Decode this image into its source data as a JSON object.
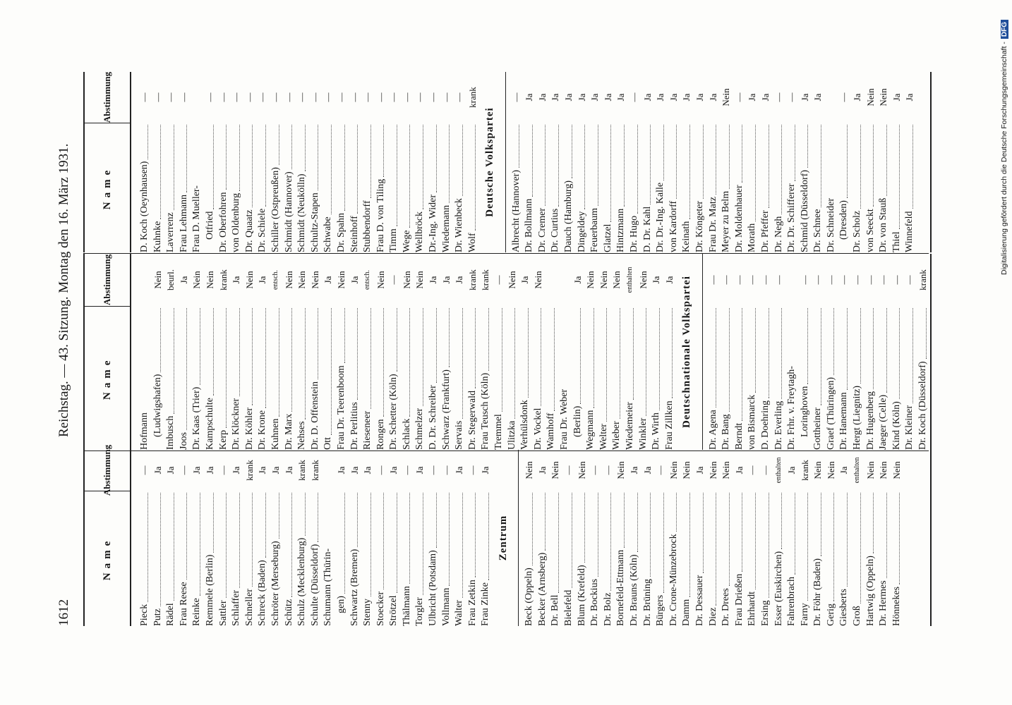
{
  "header": {
    "page_number": "1612",
    "running_title": "Reichstag. — 43. Sitzung. Montag den 16. März 1931."
  },
  "columns": [
    "Name",
    "Abstimmung"
  ],
  "tables": [
    {
      "sections": [
        {
          "rows": [
            {
              "name": "Pieck",
              "vote": "—"
            },
            {
              "name": "Putz",
              "vote": "Ja"
            },
            {
              "name": "Rädel",
              "vote": "Ja"
            },
            {
              "name": "Frau Reese",
              "vote": "—"
            },
            {
              "name": "Reinke",
              "vote": "Ja"
            },
            {
              "name": "Remmele (Berlin)",
              "vote": "Ja"
            },
            {
              "name": "Sattler",
              "vote": "—"
            },
            {
              "name": "Schlaffer",
              "vote": "Ja"
            },
            {
              "name": "Schneller",
              "vote": "krank"
            },
            {
              "name": "Schreck (Baden)",
              "vote": "Ja"
            },
            {
              "name": "Schröter (Merseburg)",
              "vote": "Ja"
            },
            {
              "name": "Schütz",
              "vote": "Ja"
            },
            {
              "name": "Schulz (Mecklenburg)",
              "vote": "krank"
            },
            {
              "name": "Schulte (Düsseldorf)",
              "vote": "krank"
            },
            {
              "name": "Schumann (Thürin-",
              "cont": "gen)",
              "vote": "Ja"
            },
            {
              "name": "Schwartz (Bremen)",
              "vote": "Ja"
            },
            {
              "name": "Stenny",
              "vote": "Ja"
            },
            {
              "name": "Stoecker",
              "vote": "—"
            },
            {
              "name": "Strötzel",
              "vote": "Ja"
            },
            {
              "name": "Thälmann",
              "vote": "—"
            },
            {
              "name": "Torgler",
              "vote": "Ja"
            },
            {
              "name": "Ulbricht (Potsdam)",
              "vote": "—"
            },
            {
              "name": "Vollmann",
              "vote": "—"
            },
            {
              "name": "Walter",
              "vote": "Ja"
            },
            {
              "name": "Frau Zetkin",
              "vote": "—"
            },
            {
              "name": "Frau Zinke",
              "vote": "Ja"
            }
          ]
        },
        {
          "heading": "Zentrum",
          "rows": [
            {
              "name": "Beck (Oppeln)",
              "vote": "Nein"
            },
            {
              "name": "Becker (Arnsberg)",
              "vote": "Ja"
            },
            {
              "name": "Dr. Bell",
              "vote": "Nein"
            },
            {
              "name": "Bielefeld",
              "vote": "—"
            },
            {
              "name": "Blum (Krefeld)",
              "vote": "Nein"
            },
            {
              "name": "Dr. Bockius",
              "vote": "—"
            },
            {
              "name": "Dr. Bolz",
              "vote": "—"
            },
            {
              "name": "Bornefeld-Ettmann",
              "vote": "Nein"
            },
            {
              "name": "Dr. Brauns (Köln)",
              "vote": "Ja"
            },
            {
              "name": "Dr. Brüning",
              "vote": "Ja"
            },
            {
              "name": "Bürgers",
              "vote": "—"
            },
            {
              "name": "Dr. Crone-Münzebrock",
              "vote": "Nein"
            },
            {
              "name": "Damm",
              "vote": "Nein"
            },
            {
              "name": "Dr. Dessauer",
              "vote": "Ja"
            },
            {
              "name": "Diez",
              "vote": "Nein"
            },
            {
              "name": "Dr. Drees",
              "vote": "Nein"
            },
            {
              "name": "Frau Drießen",
              "vote": "Ja"
            },
            {
              "name": "Ehrhardt",
              "vote": "—"
            },
            {
              "name": "Ersing",
              "vote": "—"
            },
            {
              "name": "Esser (Euskirchen)",
              "vote": "enthalten"
            },
            {
              "name": "Fahrenbrach",
              "vote": "Ja"
            },
            {
              "name": "Farny",
              "vote": "krank"
            },
            {
              "name": "Dr. Föhr (Baden)",
              "vote": "Nein"
            },
            {
              "name": "Gerig",
              "vote": "Nein"
            },
            {
              "name": "Giesberts",
              "vote": "Ja"
            },
            {
              "name": "Groß",
              "vote": "enthalten"
            },
            {
              "name": "Hartwig (Oppeln)",
              "vote": "Nein"
            },
            {
              "name": "Dr. Hermes",
              "vote": "Nein"
            },
            {
              "name": "Hönnekes",
              "vote": "Nein"
            }
          ]
        }
      ]
    },
    {
      "sections": [
        {
          "rows": [
            {
              "name": "Hofmann",
              "cont": "(Ludwigshafen)",
              "vote": "Nein"
            },
            {
              "name": "Imbusch",
              "vote": "beurl."
            },
            {
              "name": "Joos",
              "vote": "Ja"
            },
            {
              "name": "Dr. Kaas (Trier)",
              "vote": "Nein"
            },
            {
              "name": "Kampschulte",
              "vote": "Nein"
            },
            {
              "name": "Kerp",
              "vote": "krank"
            },
            {
              "name": "Dr. Klöckner",
              "vote": "Ja"
            },
            {
              "name": "Dr. Köhler",
              "vote": "Nein"
            },
            {
              "name": "Dr. Krone",
              "vote": "Ja"
            },
            {
              "name": "Kuhnen",
              "vote": "entsch."
            },
            {
              "name": "Dr. Marx",
              "vote": "Nein"
            },
            {
              "name": "Nehses",
              "vote": "Nein"
            },
            {
              "name": "Dr. D. Offenstein",
              "vote": "Nein"
            },
            {
              "name": "Ott",
              "vote": "Ja"
            },
            {
              "name": "Frau Dr. Teerenboom",
              "vote": "Nein"
            },
            {
              "name": "Dr. Perlitius",
              "vote": "Ja"
            },
            {
              "name": "Rieseneer",
              "vote": "entsch."
            },
            {
              "name": "Rongen",
              "vote": "Nein"
            },
            {
              "name": "Dr. Schetter (Köln)",
              "vote": "—"
            },
            {
              "name": "Schlack",
              "vote": "Nein"
            },
            {
              "name": "Schmelzer",
              "vote": "Nein"
            },
            {
              "name": "D. Dr. Schreiber",
              "vote": "Ja"
            },
            {
              "name": "Schwarz (Frankfurt)",
              "vote": "Ja"
            },
            {
              "name": "Servais",
              "vote": "Ja"
            },
            {
              "name": "Dr. Stegerwald",
              "vote": "krank"
            },
            {
              "name": "Frau Teusch (Köln)",
              "vote": "krank"
            },
            {
              "name": "Tremmel",
              "vote": "—"
            },
            {
              "name": "Ulitzka",
              "vote": "Nein"
            },
            {
              "name": "Verhülsdonk",
              "vote": "Ja"
            },
            {
              "name": "Dr. Vockel",
              "vote": "Nein"
            },
            {
              "name": "Wamhoff"
            },
            {
              "name": "Frau Dr. Weber",
              "cont": "(Berlin)",
              "vote": "Ja"
            },
            {
              "name": "Wegmann",
              "vote": "Nein"
            },
            {
              "name": "Welter",
              "vote": "Nein"
            },
            {
              "name": "Wieber",
              "vote": "Nein"
            },
            {
              "name": "Wiedemeier",
              "vote": "enthalten"
            },
            {
              "name": "Winkler",
              "vote": "Nein"
            },
            {
              "name": "Dr. Wirth",
              "vote": "Ja"
            },
            {
              "name": "Frau Zillken",
              "vote": "Ja"
            }
          ]
        },
        {
          "heading": "Deutschnationale Volkspartei",
          "rows": [
            {
              "name": "Dr. Agena",
              "vote": "—"
            },
            {
              "name": "Dr. Bang",
              "vote": "—"
            },
            {
              "name": "Berndt",
              "vote": "—"
            },
            {
              "name": "von Bismarck",
              "vote": "—"
            },
            {
              "name": "D. Doehring",
              "vote": "—"
            },
            {
              "name": "Dr. Everling",
              "vote": "—"
            },
            {
              "name": "Dr. Frhr. v. Freytagh-",
              "cont": "Loringhoven",
              "vote": "—"
            },
            {
              "name": "Gottheiner",
              "vote": "—"
            },
            {
              "name": "Graef (Thüringen)",
              "vote": "—"
            },
            {
              "name": "Dr. Hanemann",
              "vote": "—"
            },
            {
              "name": "Hergt (Liegnitz)",
              "vote": "—"
            },
            {
              "name": "Dr. Hugenberg",
              "vote": "—"
            },
            {
              "name": "Jaeger (Celle)",
              "vote": "—"
            },
            {
              "name": "Kind (Köln)",
              "vote": "—"
            },
            {
              "name": "Dr. Kleiner",
              "vote": "—"
            },
            {
              "name": "Dr. Koch (Düsseldorf)",
              "vote": "krank"
            }
          ]
        }
      ]
    },
    {
      "sections": [
        {
          "rows": [
            {
              "name": "D. Koch (Oeynhausen)",
              "vote": "—"
            },
            {
              "name": "Kuhnke",
              "vote": "—"
            },
            {
              "name": "Laverrenz",
              "vote": "—"
            },
            {
              "name": "Frau Lehmann",
              "vote": "—"
            },
            {
              "name": "Frau D. Mueller-",
              "cont": "Otfried",
              "vote": "—"
            },
            {
              "name": "Dr. Oberfohren",
              "vote": "—"
            },
            {
              "name": "von Oldenburg",
              "vote": "—"
            },
            {
              "name": "Dr. Quaatz",
              "vote": "—"
            },
            {
              "name": "Dr. Schiele",
              "vote": "—"
            },
            {
              "name": "Schiller (Ostpreußen)",
              "vote": "—"
            },
            {
              "name": "Schmidt (Hannover)",
              "vote": "—"
            },
            {
              "name": "Schmidt (Neukölln)",
              "vote": "—"
            },
            {
              "name": "Schultz-Stapen",
              "vote": "—"
            },
            {
              "name": "Schwabe",
              "vote": "—"
            },
            {
              "name": "Dr. Spahn",
              "vote": "—"
            },
            {
              "name": "Steinhoff",
              "vote": "—"
            },
            {
              "name": "Stubbendorff",
              "vote": "—"
            },
            {
              "name": "Frau D. von Tiling",
              "vote": "—"
            },
            {
              "name": "Timm",
              "vote": "—"
            },
            {
              "name": "Wege",
              "vote": "—"
            },
            {
              "name": "Wellbröck",
              "vote": "—"
            },
            {
              "name": "Dr.-Ing. Wider",
              "vote": "—"
            },
            {
              "name": "Wiedemann",
              "vote": "—"
            },
            {
              "name": "Dr. Wienbeck",
              "vote": "—"
            },
            {
              "name": "Wolf",
              "vote": "krank"
            }
          ]
        },
        {
          "heading": "Deutsche Volkspartei",
          "rows": [
            {
              "name": "Albrecht (Hannover)",
              "vote": "—"
            },
            {
              "name": "Dr. Bollmann",
              "vote": "Ja"
            },
            {
              "name": "Dr. Cremer",
              "vote": "Ja"
            },
            {
              "name": "Dr. Curtius",
              "vote": "Ja"
            },
            {
              "name": "Dauch (Hamburg)",
              "vote": "Ja"
            },
            {
              "name": "Dingeldey",
              "vote": "Ja"
            },
            {
              "name": "Feuerbaum",
              "vote": "Ja"
            },
            {
              "name": "Glatzel",
              "vote": "Ja"
            },
            {
              "name": "Hintzmann",
              "vote": "Ja"
            },
            {
              "name": "Dr. Hugo",
              "vote": "—"
            },
            {
              "name": "D. Dr. Kahl",
              "vote": "Ja"
            },
            {
              "name": "Dr. Dr.-Ing. Kalle",
              "vote": "Ja"
            },
            {
              "name": "von Kardorff",
              "vote": "Ja"
            },
            {
              "name": "Keinath",
              "vote": "Ja"
            },
            {
              "name": "Dr. Köngeter",
              "vote": "Ja"
            },
            {
              "name": "Frau Dr. Matz",
              "vote": "Ja"
            },
            {
              "name": "Meyer zu Belm",
              "vote": "Nein"
            },
            {
              "name": "Dr. Moldenhauer",
              "vote": "—"
            },
            {
              "name": "Morath",
              "vote": "Ja"
            },
            {
              "name": "Dr. Pfeffer",
              "vote": "Ja"
            },
            {
              "name": "Dr. Negh",
              "vote": "—"
            },
            {
              "name": "Dr. Dr. Schifferer",
              "vote": "—"
            },
            {
              "name": "Schmid (Düsseldorf)",
              "vote": "Ja"
            },
            {
              "name": "Dr. Schnee",
              "vote": "Ja"
            },
            {
              "name": "Dr. Schneider",
              "cont": "(Dresden)",
              "vote": "—"
            },
            {
              "name": "Dr. Scholz",
              "vote": "Ja"
            },
            {
              "name": "von Seeckt",
              "vote": "Nein"
            },
            {
              "name": "Dr. von Stauß",
              "vote": "Nein"
            },
            {
              "name": "Thiel",
              "vote": "Ja"
            },
            {
              "name": "Winnefeld",
              "vote": "Ja"
            }
          ]
        }
      ]
    }
  ],
  "footer": {
    "text": "Digitalisierung gefördert durch die Deutsche Forschungsgemeinschaft -",
    "logo": "DFG"
  }
}
